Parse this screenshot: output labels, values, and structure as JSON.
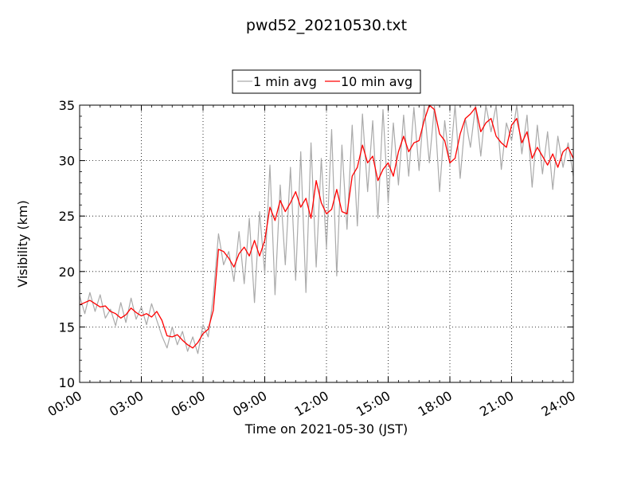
{
  "chart_data": {
    "type": "line",
    "title": "pwd52_20210530.txt",
    "xlabel": "Time on 2021-05-30 (JST)",
    "ylabel": "Visibility (km)",
    "xlim": [
      0,
      24
    ],
    "ylim": [
      10,
      35
    ],
    "grid": true,
    "legend_position": "top-center",
    "x_ticks": [
      "00:00",
      "03:00",
      "06:00",
      "09:00",
      "12:00",
      "15:00",
      "18:00",
      "21:00",
      "24:00"
    ],
    "y_ticks": [
      "10",
      "15",
      "20",
      "25",
      "30",
      "35"
    ],
    "series": [
      {
        "name": "1 min avg",
        "color": "#aaaaaa",
        "x": [
          0,
          0.25,
          0.5,
          0.75,
          1,
          1.25,
          1.5,
          1.75,
          2,
          2.25,
          2.5,
          2.75,
          3,
          3.25,
          3.5,
          3.75,
          4,
          4.25,
          4.5,
          4.75,
          5,
          5.25,
          5.5,
          5.75,
          6,
          6.25,
          6.5,
          6.75,
          7,
          7.25,
          7.5,
          7.75,
          8,
          8.25,
          8.5,
          8.75,
          9,
          9.25,
          9.5,
          9.75,
          10,
          10.25,
          10.5,
          10.75,
          11,
          11.25,
          11.5,
          11.75,
          12,
          12.25,
          12.5,
          12.75,
          13,
          13.25,
          13.5,
          13.75,
          14,
          14.25,
          14.5,
          14.75,
          15,
          15.25,
          15.5,
          15.75,
          16,
          16.25,
          16.5,
          16.75,
          17,
          17.25,
          17.5,
          17.75,
          18,
          18.25,
          18.5,
          18.75,
          19,
          19.25,
          19.5,
          19.75,
          20,
          20.25,
          20.5,
          20.75,
          21,
          21.25,
          21.5,
          21.75,
          22,
          22.25,
          22.5,
          22.75,
          23,
          23.25,
          23.5,
          23.75,
          24
        ],
        "y": [
          17.8,
          16.2,
          18.1,
          16.4,
          17.9,
          15.8,
          16.6,
          15.1,
          17.2,
          15.4,
          17.6,
          15.7,
          16.8,
          15.2,
          17.1,
          15.6,
          14.2,
          13.1,
          15.0,
          13.4,
          14.6,
          12.8,
          14.1,
          12.6,
          15.2,
          14.1,
          17.8,
          23.4,
          20.6,
          21.8,
          19.1,
          23.6,
          18.9,
          24.8,
          17.2,
          25.4,
          19.8,
          29.6,
          17.9,
          27.8,
          20.6,
          29.4,
          19.2,
          30.8,
          18.1,
          31.6,
          20.4,
          30.2,
          22.1,
          32.8,
          19.6,
          31.4,
          23.8,
          33.2,
          24.1,
          34.2,
          27.2,
          33.6,
          24.8,
          34.6,
          26.2,
          33.4,
          27.8,
          34.1,
          28.6,
          34.8,
          29.1,
          35.0,
          29.8,
          34.9,
          27.2,
          33.6,
          29.6,
          35.0,
          28.4,
          33.8,
          31.2,
          35.0,
          30.4,
          35.0,
          32.6,
          35.0,
          29.2,
          33.4,
          31.8,
          35.0,
          30.6,
          34.1,
          27.6,
          33.2,
          28.8,
          32.6,
          27.4,
          32.2,
          29.4,
          31.6,
          28.6
        ]
      },
      {
        "name": "10 min avg",
        "color": "#ff0000",
        "x": [
          0,
          0.25,
          0.5,
          0.75,
          1,
          1.25,
          1.5,
          1.75,
          2,
          2.25,
          2.5,
          2.75,
          3,
          3.25,
          3.5,
          3.75,
          4,
          4.25,
          4.5,
          4.75,
          5,
          5.25,
          5.5,
          5.75,
          6,
          6.25,
          6.5,
          6.75,
          7,
          7.25,
          7.5,
          7.75,
          8,
          8.25,
          8.5,
          8.75,
          9,
          9.25,
          9.5,
          9.75,
          10,
          10.25,
          10.5,
          10.75,
          11,
          11.25,
          11.5,
          11.75,
          12,
          12.25,
          12.5,
          12.75,
          13,
          13.25,
          13.5,
          13.75,
          14,
          14.25,
          14.5,
          14.75,
          15,
          15.25,
          15.5,
          15.75,
          16,
          16.25,
          16.5,
          16.75,
          17,
          17.25,
          17.5,
          17.75,
          18,
          18.25,
          18.5,
          18.75,
          19,
          19.25,
          19.5,
          19.75,
          20,
          20.25,
          20.5,
          20.75,
          21,
          21.25,
          21.5,
          21.75,
          22,
          22.25,
          22.5,
          22.75,
          23,
          23.25,
          23.5,
          23.75,
          24
        ],
        "y": [
          17.0,
          17.2,
          17.4,
          17.1,
          16.8,
          16.9,
          16.4,
          16.2,
          15.8,
          16.1,
          16.7,
          16.3,
          16.0,
          16.2,
          15.9,
          16.4,
          15.6,
          14.2,
          14.1,
          14.3,
          13.8,
          13.4,
          13.1,
          13.6,
          14.4,
          14.8,
          16.5,
          22.0,
          21.8,
          21.2,
          20.4,
          21.6,
          22.2,
          21.4,
          22.8,
          21.4,
          22.8,
          25.8,
          24.6,
          26.4,
          25.4,
          26.2,
          27.2,
          25.8,
          26.6,
          24.8,
          28.2,
          26.2,
          25.2,
          25.6,
          27.4,
          25.4,
          25.2,
          28.6,
          29.4,
          31.4,
          29.8,
          30.4,
          28.2,
          29.2,
          29.8,
          28.6,
          30.8,
          32.2,
          30.8,
          31.6,
          31.8,
          33.6,
          35.0,
          34.6,
          32.4,
          31.8,
          29.8,
          30.2,
          32.4,
          33.8,
          34.2,
          34.8,
          32.6,
          33.4,
          33.8,
          32.2,
          31.6,
          31.2,
          33.2,
          33.8,
          31.6,
          32.6,
          30.2,
          31.2,
          30.4,
          29.6,
          30.6,
          29.4,
          30.8,
          31.2,
          30.2
        ]
      }
    ]
  }
}
